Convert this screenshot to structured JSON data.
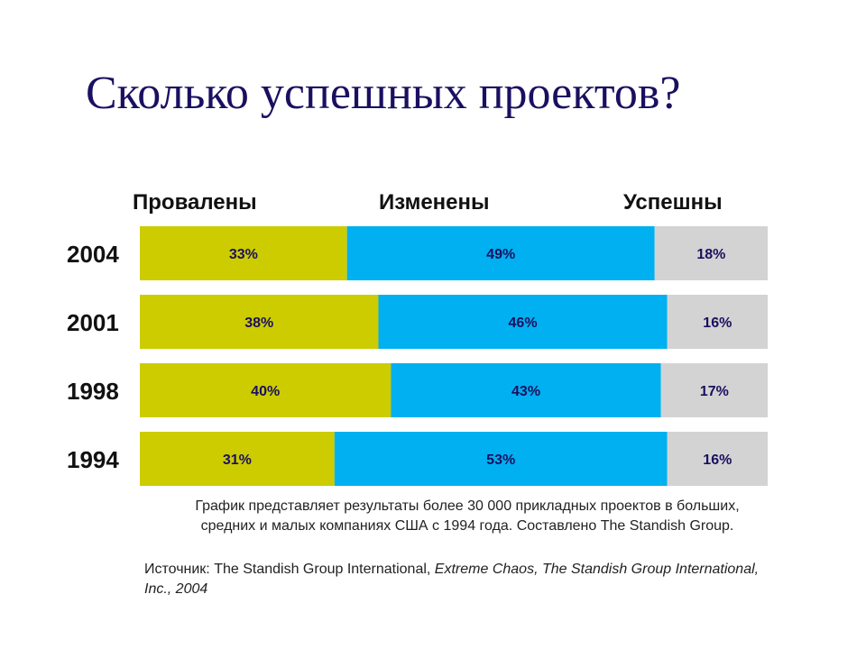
{
  "title": "Сколько успешных проектов?",
  "colors": {
    "failed": "#cccc00",
    "changed": "#00b0f0",
    "success": "#d3d3d3",
    "text": "#1a1060"
  },
  "chart_data": {
    "type": "bar",
    "orientation": "horizontal",
    "stacked": true,
    "categories": [
      "2004",
      "2001",
      "1998",
      "1994"
    ],
    "series": [
      {
        "name": "Провалены",
        "values": [
          33,
          38,
          40,
          31
        ],
        "labels": [
          "33%",
          "38%",
          "40%",
          "31%"
        ]
      },
      {
        "name": "Изменены",
        "values": [
          49,
          46,
          43,
          53
        ],
        "labels": [
          "49%",
          "46%",
          "43%",
          "53%"
        ]
      },
      {
        "name": "Успешны",
        "values": [
          18,
          16,
          17,
          16
        ],
        "labels": [
          "18%",
          "16%",
          "17%",
          "16%"
        ]
      }
    ],
    "legend": "top",
    "grid": false
  },
  "caption": {
    "line1": "График представляет результаты более 30 000 прикладных проектов в больших,",
    "line2": "средних и малых компаниях США с 1994 года. Составлено The Standish Group."
  },
  "source": {
    "prefix": "Источник: The Standish Group International, ",
    "italic": "Extreme Chaos, The Standish Group International, Inc., 2004"
  }
}
